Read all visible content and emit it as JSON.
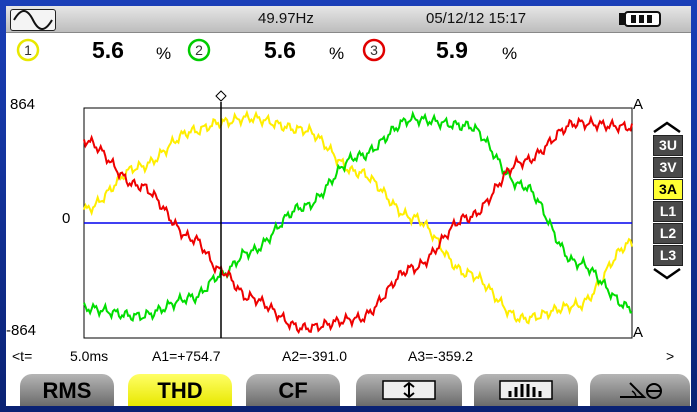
{
  "status": {
    "frequency": "49.97Hz",
    "datetime": "05/12/12  15:17",
    "mode_icon": "sine-wave-icon",
    "battery_icon": "battery-icon"
  },
  "readings": [
    {
      "channel": "1",
      "value": "5.6",
      "unit": "%",
      "color": "#e8e800"
    },
    {
      "channel": "2",
      "value": "5.6",
      "unit": "%",
      "color": "#00cc00"
    },
    {
      "channel": "3",
      "value": "5.9",
      "unit": "%",
      "color": "#e00000"
    }
  ],
  "plot": {
    "ymax_label": "864",
    "yzero_label": "0",
    "ymin_label": "-864",
    "unit_top": "A",
    "unit_bottom": "A",
    "colors": {
      "1": "#ffee00",
      "2": "#00dd00",
      "3": "#ee0000",
      "zero": "#0000ee"
    }
  },
  "chart_data": {
    "type": "line",
    "ylim": [
      -864,
      864
    ],
    "x_span_ms": 20,
    "series": [
      {
        "name": "1",
        "x_ms": [
          0,
          2,
          4,
          5,
          6,
          8,
          10,
          12,
          14,
          16,
          18,
          20
        ],
        "values": [
          100,
          420,
          690,
          755,
          790,
          700,
          380,
          40,
          -380,
          -720,
          -620,
          -150
        ]
      },
      {
        "name": "2",
        "x_ms": [
          0,
          2,
          4,
          5,
          6,
          8,
          10,
          12,
          14,
          16,
          18,
          20
        ],
        "values": [
          -640,
          -700,
          -560,
          -391,
          -220,
          120,
          500,
          780,
          730,
          280,
          -300,
          -640
        ]
      },
      {
        "name": "3",
        "x_ms": [
          0,
          2,
          4,
          5,
          6,
          8,
          10,
          12,
          14,
          16,
          18,
          20
        ],
        "values": [
          620,
          280,
          -120,
          -359,
          -560,
          -790,
          -720,
          -340,
          40,
          460,
          750,
          720
        ]
      }
    ]
  },
  "cursor": {
    "t_label": "<t=",
    "t_value": "5.0ms",
    "a1": "A1=+754.7",
    "a2": "A2=-391.0",
    "a3": "A3=-359.2",
    "more": ">",
    "x_ms": 5
  },
  "sidebar": {
    "items": [
      {
        "label": "3U",
        "active": false
      },
      {
        "label": "3V",
        "active": false
      },
      {
        "label": "3A",
        "active": true
      },
      {
        "label": "L1",
        "active": false
      },
      {
        "label": "L2",
        "active": false
      },
      {
        "label": "L3",
        "active": false
      }
    ]
  },
  "softkeys": {
    "rms": "RMS",
    "thd": "THD",
    "cf": "CF",
    "zoom_icon": "vertical-zoom-icon",
    "harmonics_icon": "bars-icon",
    "phase_icon": "phase-angle-icon"
  }
}
